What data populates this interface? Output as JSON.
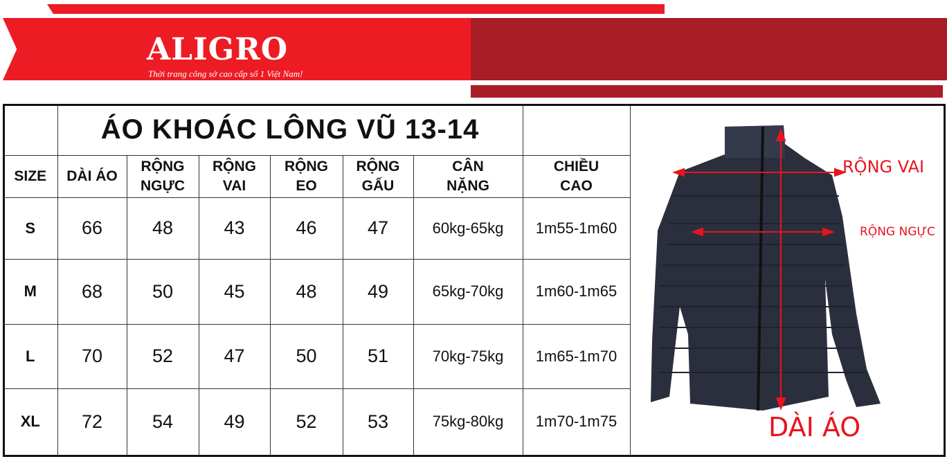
{
  "brand": {
    "name": "ALIGRO",
    "slogan": "Thời trang công sở cao cấp số 1 Việt Nam!",
    "colors": {
      "red": "#ed1c24",
      "dark_red": "#a91d27"
    }
  },
  "table": {
    "title": "ÁO KHOÁC LÔNG VŨ 13-14",
    "headers": [
      [
        "SIZE"
      ],
      [
        "DÀI ÁO"
      ],
      [
        "RỘNG",
        "NGỰC"
      ],
      [
        "RỘNG",
        "VAI"
      ],
      [
        "RỘNG",
        "EO"
      ],
      [
        "RỘNG",
        "GẤU"
      ],
      [
        "CÂN",
        "NẶNG"
      ],
      [
        "CHIỀU",
        "CAO"
      ]
    ],
    "rows": [
      [
        "S",
        "66",
        "48",
        "43",
        "46",
        "47",
        "60kg-65kg",
        "1m55-1m60"
      ],
      [
        "M",
        "68",
        "50",
        "45",
        "48",
        "49",
        "65kg-70kg",
        "1m60-1m65"
      ],
      [
        "L",
        "70",
        "52",
        "47",
        "50",
        "51",
        "70kg-75kg",
        "1m65-1m70"
      ],
      [
        "XL",
        "72",
        "54",
        "49",
        "52",
        "53",
        "75kg-80kg",
        "1m70-1m75"
      ]
    ]
  },
  "diagram": {
    "shoulder_label": "RỘNG VAI",
    "chest_label": "RỘNG NGỰC",
    "length_label": "DÀI ÁO",
    "arrow_color": "#e8141d"
  }
}
